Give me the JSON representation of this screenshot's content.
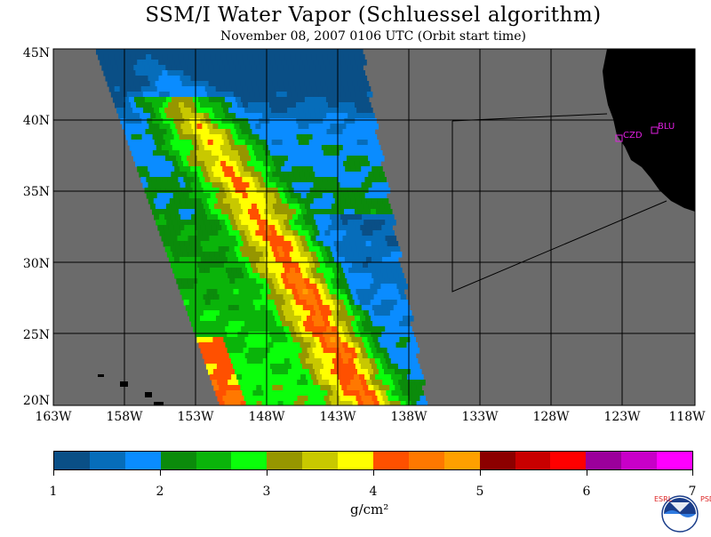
{
  "title": "SSM/I Water Vapor (Schluessel algorithm)",
  "subtitle": "November 08, 2007  0106 UTC  (Orbit start time)",
  "map": {
    "lat_labels": [
      "45N",
      "40N",
      "35N",
      "30N",
      "25N",
      "20N"
    ],
    "lon_labels": [
      "163W",
      "158W",
      "153W",
      "148W",
      "143W",
      "138W",
      "133W",
      "128W",
      "123W",
      "118W"
    ],
    "stations": [
      {
        "name": "CZD"
      },
      {
        "name": "BLU"
      }
    ],
    "colors": {
      "land": "#000000",
      "no_data": "#6b6b6b",
      "grid": "#000000",
      "station": "#e020e0"
    }
  },
  "colorbar": {
    "colors": [
      "#0a4f86",
      "#066dba",
      "#0a8cff",
      "#0b8b0b",
      "#0ab40a",
      "#0aff0a",
      "#969600",
      "#c8c800",
      "#ffff00",
      "#ff5000",
      "#ff7800",
      "#ffa000",
      "#8c0000",
      "#c80000",
      "#ff0000",
      "#9b009b",
      "#c800c8",
      "#ff00ff"
    ],
    "tick_labels": [
      "1",
      "2",
      "3",
      "4",
      "5",
      "6",
      "7"
    ],
    "units": "g/cm²"
  },
  "logo": {
    "name": "NOAA",
    "side_left": "ESRL",
    "side_right": "PSD"
  }
}
